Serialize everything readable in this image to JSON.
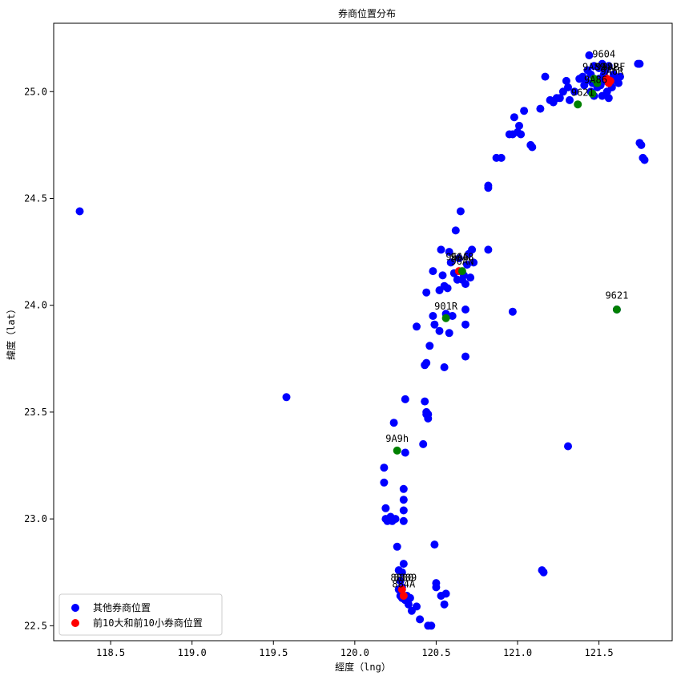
{
  "chart_data": {
    "type": "scatter",
    "title": "券商位置分布",
    "xlabel": "經度（lng）",
    "ylabel": "緯度（lat）",
    "xlim": [
      118.15,
      121.95
    ],
    "ylim": [
      22.43,
      25.32
    ],
    "xticks": [
      118.5,
      119.0,
      119.5,
      120.0,
      120.5,
      121.0,
      121.5
    ],
    "xtick_labels": [
      "118.5",
      "119.0",
      "119.5",
      "120.0",
      "120.5",
      "121.0",
      "121.5"
    ],
    "yticks": [
      22.5,
      23.0,
      23.5,
      24.0,
      24.5,
      25.0
    ],
    "ytick_labels": [
      "22.5",
      "23.0",
      "23.5",
      "24.0",
      "24.5",
      "25.0"
    ],
    "grid": false,
    "legend": "lower-left",
    "series": [
      {
        "name": "其他券商位置",
        "color": "#0000ff",
        "points": [
          [
            118.31,
            24.44
          ],
          [
            119.58,
            23.57
          ],
          [
            120.18,
            23.24
          ],
          [
            120.18,
            23.17
          ],
          [
            120.19,
            23.05
          ],
          [
            120.19,
            23.0
          ],
          [
            120.2,
            22.99
          ],
          [
            120.21,
            23.0
          ],
          [
            120.22,
            23.01
          ],
          [
            120.23,
            22.99
          ],
          [
            120.24,
            23.45
          ],
          [
            120.25,
            23.0
          ],
          [
            120.26,
            22.87
          ],
          [
            120.27,
            22.76
          ],
          [
            120.28,
            22.71
          ],
          [
            120.28,
            22.64
          ],
          [
            120.29,
            22.63
          ],
          [
            120.29,
            22.68
          ],
          [
            120.3,
            23.14
          ],
          [
            120.3,
            23.09
          ],
          [
            120.3,
            23.04
          ],
          [
            120.3,
            22.99
          ],
          [
            120.3,
            22.79
          ],
          [
            120.31,
            23.31
          ],
          [
            120.31,
            22.62
          ],
          [
            120.32,
            22.64
          ],
          [
            120.33,
            22.6
          ],
          [
            120.34,
            22.63
          ],
          [
            120.35,
            22.57
          ],
          [
            120.29,
            22.75
          ],
          [
            120.27,
            22.67
          ],
          [
            120.38,
            22.59
          ],
          [
            120.4,
            22.53
          ],
          [
            120.42,
            23.35
          ],
          [
            120.43,
            23.55
          ],
          [
            120.44,
            23.5
          ],
          [
            120.44,
            23.49
          ],
          [
            120.45,
            23.47
          ],
          [
            120.45,
            22.5
          ],
          [
            120.47,
            22.5
          ],
          [
            120.49,
            22.88
          ],
          [
            120.5,
            22.68
          ],
          [
            120.5,
            22.7
          ],
          [
            120.53,
            22.64
          ],
          [
            120.55,
            22.6
          ],
          [
            120.56,
            22.65
          ],
          [
            120.45,
            23.49
          ],
          [
            120.31,
            23.56
          ],
          [
            120.43,
            23.72
          ],
          [
            120.44,
            23.73
          ],
          [
            120.46,
            23.81
          ],
          [
            120.48,
            23.95
          ],
          [
            120.49,
            23.91
          ],
          [
            120.52,
            23.88
          ],
          [
            120.55,
            23.71
          ],
          [
            120.56,
            23.96
          ],
          [
            120.58,
            23.87
          ],
          [
            120.6,
            23.95
          ],
          [
            120.68,
            23.91
          ],
          [
            120.68,
            23.76
          ],
          [
            120.68,
            23.98
          ],
          [
            120.44,
            24.06
          ],
          [
            120.48,
            24.16
          ],
          [
            120.52,
            24.07
          ],
          [
            120.53,
            24.26
          ],
          [
            120.54,
            24.14
          ],
          [
            120.55,
            24.09
          ],
          [
            120.57,
            24.08
          ],
          [
            120.58,
            24.25
          ],
          [
            120.59,
            24.2
          ],
          [
            120.61,
            24.15
          ],
          [
            120.62,
            24.35
          ],
          [
            120.63,
            24.12
          ],
          [
            120.64,
            24.22
          ],
          [
            120.65,
            24.44
          ],
          [
            120.66,
            24.12
          ],
          [
            120.67,
            24.14
          ],
          [
            120.68,
            24.1
          ],
          [
            120.69,
            24.19
          ],
          [
            120.7,
            24.24
          ],
          [
            120.71,
            24.13
          ],
          [
            120.72,
            24.26
          ],
          [
            120.73,
            24.2
          ],
          [
            120.82,
            24.26
          ],
          [
            120.97,
            23.97
          ],
          [
            120.38,
            23.9
          ],
          [
            120.82,
            24.56
          ],
          [
            120.82,
            24.55
          ],
          [
            120.87,
            24.69
          ],
          [
            120.9,
            24.69
          ],
          [
            120.95,
            24.8
          ],
          [
            120.97,
            24.8
          ],
          [
            120.98,
            24.88
          ],
          [
            121.0,
            24.81
          ],
          [
            121.01,
            24.84
          ],
          [
            121.02,
            24.8
          ],
          [
            121.04,
            24.91
          ],
          [
            121.08,
            24.75
          ],
          [
            121.09,
            24.74
          ],
          [
            121.14,
            24.92
          ],
          [
            121.17,
            25.07
          ],
          [
            121.2,
            24.96
          ],
          [
            121.22,
            24.95
          ],
          [
            121.24,
            24.97
          ],
          [
            121.26,
            24.97
          ],
          [
            121.28,
            25.0
          ],
          [
            121.3,
            25.05
          ],
          [
            121.31,
            25.02
          ],
          [
            121.32,
            24.96
          ],
          [
            121.35,
            25.0
          ],
          [
            121.38,
            25.06
          ],
          [
            121.4,
            25.07
          ],
          [
            121.41,
            25.03
          ],
          [
            121.42,
            25.05
          ],
          [
            121.43,
            25.1
          ],
          [
            121.44,
            25.17
          ],
          [
            121.45,
            25.08
          ],
          [
            121.46,
            25.04
          ],
          [
            121.47,
            25.12
          ],
          [
            121.48,
            25.05
          ],
          [
            121.49,
            25.02
          ],
          [
            121.5,
            25.06
          ],
          [
            121.51,
            25.03
          ],
          [
            121.52,
            25.13
          ],
          [
            121.53,
            25.08
          ],
          [
            121.54,
            25.05
          ],
          [
            121.55,
            25.0
          ],
          [
            121.56,
            25.12
          ],
          [
            121.57,
            25.04
          ],
          [
            121.58,
            25.02
          ],
          [
            121.59,
            25.06
          ],
          [
            121.6,
            25.07
          ],
          [
            121.61,
            25.05
          ],
          [
            121.62,
            25.04
          ],
          [
            121.63,
            25.07
          ],
          [
            121.47,
            24.98
          ],
          [
            121.52,
            24.98
          ],
          [
            121.56,
            24.97
          ],
          [
            121.45,
            25.0
          ],
          [
            121.5,
            25.11
          ],
          [
            121.54,
            25.1
          ],
          [
            121.59,
            25.08
          ],
          [
            121.74,
            25.13
          ],
          [
            121.75,
            25.13
          ],
          [
            121.75,
            24.76
          ],
          [
            121.76,
            24.75
          ],
          [
            121.77,
            24.69
          ],
          [
            121.78,
            24.68
          ],
          [
            121.31,
            23.34
          ],
          [
            121.15,
            22.76
          ],
          [
            121.16,
            22.75
          ],
          [
            121.61,
            23.98
          ]
        ]
      },
      {
        "name": "前10大和前10小券商位置",
        "color": "#ff0000",
        "points": [
          [
            121.55,
            25.06
          ],
          [
            121.56,
            25.04
          ],
          [
            121.57,
            25.05
          ],
          [
            120.64,
            24.16
          ],
          [
            120.29,
            22.67
          ],
          [
            120.3,
            22.64
          ]
        ]
      },
      {
        "color": "#008000",
        "points": [
          [
            121.47,
            25.06
          ],
          [
            121.49,
            25.04
          ],
          [
            121.37,
            24.94
          ],
          [
            121.46,
            24.99
          ],
          [
            120.56,
            23.94
          ],
          [
            121.61,
            23.98
          ],
          [
            120.26,
            23.32
          ],
          [
            120.66,
            24.16
          ]
        ]
      }
    ],
    "annotations": [
      {
        "text": "9604",
        "x": 121.53,
        "y": 25.16
      },
      {
        "text": "9A89",
        "x": 121.47,
        "y": 25.1
      },
      {
        "text": "9A8P",
        "x": 121.55,
        "y": 25.1
      },
      {
        "text": "9A8F",
        "x": 121.59,
        "y": 25.1
      },
      {
        "text": "9A6R",
        "x": 121.58,
        "y": 25.08
      },
      {
        "text": "9A86",
        "x": 121.48,
        "y": 25.04
      },
      {
        "text": "9621",
        "x": 121.4,
        "y": 24.98
      },
      {
        "text": "9621",
        "x": 121.61,
        "y": 24.03
      },
      {
        "text": "901R",
        "x": 120.56,
        "y": 23.98
      },
      {
        "text": "9A9h",
        "x": 120.26,
        "y": 23.36
      },
      {
        "text": "96A6",
        "x": 120.63,
        "y": 24.21
      },
      {
        "text": "96A8",
        "x": 120.66,
        "y": 24.21
      },
      {
        "text": "96AN",
        "x": 120.66,
        "y": 24.19
      },
      {
        "text": "8880",
        "x": 120.29,
        "y": 22.71
      },
      {
        "text": "8889",
        "x": 120.31,
        "y": 22.71
      },
      {
        "text": "884A",
        "x": 120.3,
        "y": 22.68
      }
    ]
  }
}
